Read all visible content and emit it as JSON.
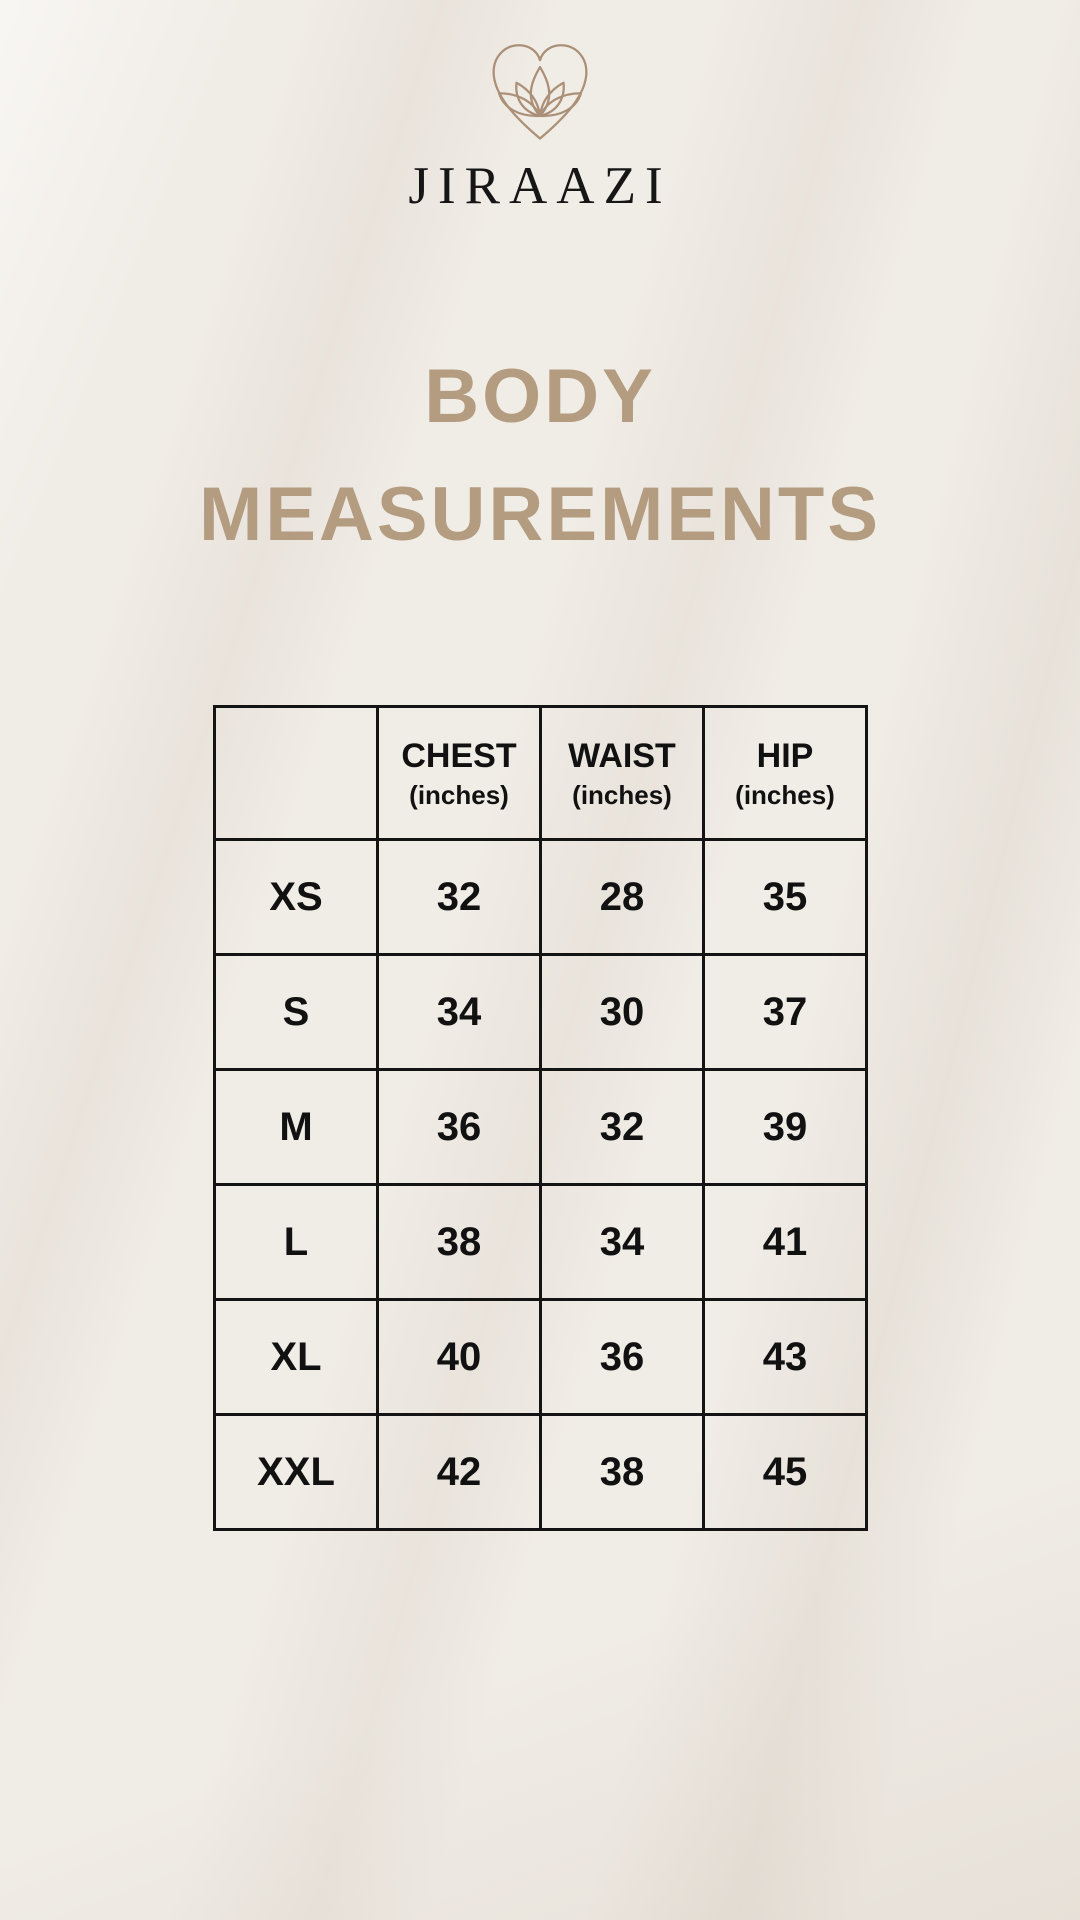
{
  "brand": {
    "name": "JIRAAZI",
    "logo_icon": "lotus-heart-icon"
  },
  "title": {
    "line1": "BODY",
    "line2": "MEASUREMENTS"
  },
  "colors": {
    "background": "#f0ece6",
    "title_tan": "#b49c80",
    "logo_stroke": "#ab9077",
    "text": "#141414",
    "table_border": "#141414"
  },
  "table": {
    "unit_label": "(inches)",
    "columns": [
      "CHEST",
      "WAIST",
      "HIP"
    ],
    "rows": [
      {
        "size": "XS",
        "chest": "32",
        "waist": "28",
        "hip": "35"
      },
      {
        "size": "S",
        "chest": "34",
        "waist": "30",
        "hip": "37"
      },
      {
        "size": "M",
        "chest": "36",
        "waist": "32",
        "hip": "39"
      },
      {
        "size": "L",
        "chest": "38",
        "waist": "34",
        "hip": "41"
      },
      {
        "size": "XL",
        "chest": "40",
        "waist": "36",
        "hip": "43"
      },
      {
        "size": "XXL",
        "chest": "42",
        "waist": "38",
        "hip": "45"
      }
    ]
  }
}
